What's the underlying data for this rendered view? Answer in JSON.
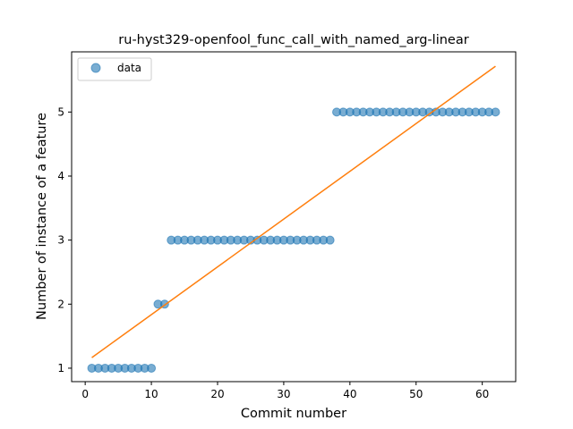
{
  "chart_data": {
    "type": "scatter",
    "title": "ru-hyst329-openfool_func_call_with_named_arg-linear",
    "xlabel": "Commit number",
    "ylabel": "Number of instance of a feature",
    "xlim": [
      -2.05,
      65.05
    ],
    "ylim": [
      0.79,
      5.94
    ],
    "xticks": [
      0,
      10,
      20,
      30,
      40,
      50,
      60
    ],
    "yticks": [
      1,
      2,
      3,
      4,
      5
    ],
    "grid": false,
    "legend": {
      "position": "top-left",
      "entries": [
        "data"
      ]
    },
    "series": [
      {
        "name": "data",
        "kind": "scatter",
        "color": "#1f77b4",
        "x": [
          1,
          2,
          3,
          4,
          5,
          6,
          7,
          8,
          9,
          10,
          11,
          12,
          13,
          14,
          15,
          16,
          17,
          18,
          19,
          20,
          21,
          22,
          23,
          24,
          25,
          26,
          27,
          28,
          29,
          30,
          31,
          32,
          33,
          34,
          35,
          36,
          37,
          38,
          39,
          40,
          41,
          42,
          43,
          44,
          45,
          46,
          47,
          48,
          49,
          50,
          51,
          52,
          53,
          54,
          55,
          56,
          57,
          58,
          59,
          60,
          61,
          62
        ],
        "y": [
          1,
          1,
          1,
          1,
          1,
          1,
          1,
          1,
          1,
          1,
          2,
          2,
          3,
          3,
          3,
          3,
          3,
          3,
          3,
          3,
          3,
          3,
          3,
          3,
          3,
          3,
          3,
          3,
          3,
          3,
          3,
          3,
          3,
          3,
          3,
          3,
          3,
          5,
          5,
          5,
          5,
          5,
          5,
          5,
          5,
          5,
          5,
          5,
          5,
          5,
          5,
          5,
          5,
          5,
          5,
          5,
          5,
          5,
          5,
          5,
          5,
          5
        ]
      },
      {
        "kind": "line",
        "color": "#ff7f0e",
        "x": [
          1,
          62
        ],
        "y": [
          1.165,
          5.715
        ]
      }
    ]
  }
}
